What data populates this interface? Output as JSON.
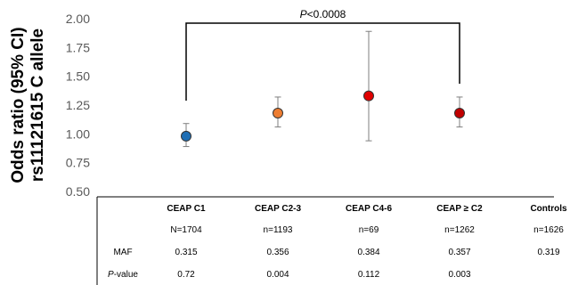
{
  "chart_data": {
    "type": "scatter",
    "title": "",
    "xlabel": "",
    "ylabel_lines": [
      "Odds ratio (95% CI)",
      "rs11121615 C allele"
    ],
    "ylim": [
      0.5,
      2.0
    ],
    "y_ticks": [
      "0.50",
      "0.75",
      "1.00",
      "1.25",
      "1.50",
      "1.75",
      "2.00"
    ],
    "grid": false,
    "categories": [
      "CEAP C1",
      "CEAP C2-3",
      "CEAP C4-6",
      "CEAP ≥ C2",
      "Controls"
    ],
    "points": [
      {
        "category": "CEAP C1",
        "or": 0.98,
        "ci_low": 0.89,
        "ci_high": 1.09,
        "color": "#1f6fb5"
      },
      {
        "category": "CEAP C2-3",
        "or": 1.18,
        "ci_low": 1.06,
        "ci_high": 1.32,
        "color": "#ed7d31"
      },
      {
        "category": "CEAP C4-6",
        "or": 1.33,
        "ci_low": 0.94,
        "ci_high": 1.89,
        "color": "#e00000"
      },
      {
        "category": "CEAP ≥ C2",
        "or": 1.18,
        "ci_low": 1.06,
        "ci_high": 1.32,
        "color": "#c00000"
      }
    ],
    "comparison": {
      "from": "CEAP C1",
      "to": "CEAP ≥ C2",
      "label_italic": "P",
      "label_rest": "<0.0008"
    },
    "table": {
      "header": [
        "CEAP C1",
        "CEAP C2-3",
        "CEAP C4-6",
        "CEAP ≥ C2",
        "Controls"
      ],
      "n_row": [
        "N=1704",
        "n=1193",
        "n=69",
        "n=1262",
        "n=1626"
      ],
      "rows": [
        {
          "label_italic": "",
          "label_rest": "MAF",
          "values": [
            "0.315",
            "0.356",
            "0.384",
            "0.357",
            "0.319"
          ]
        },
        {
          "label_italic": "P",
          "label_rest": "-value",
          "values": [
            "0.72",
            "0.004",
            "0.112",
            "0.003",
            ""
          ]
        }
      ]
    }
  }
}
